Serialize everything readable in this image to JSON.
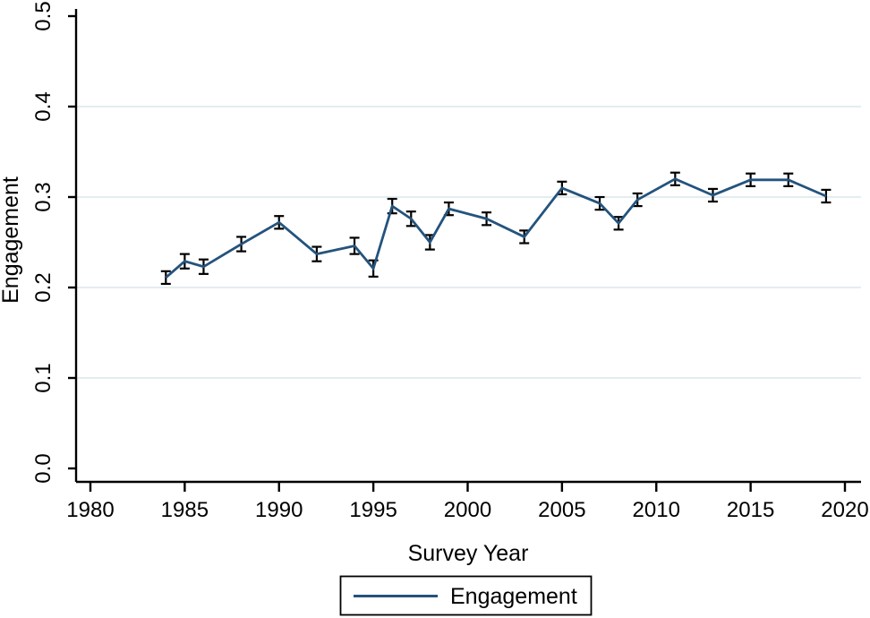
{
  "figure": {
    "background": "#ffffff"
  },
  "chart_data": {
    "type": "line",
    "title": "",
    "xlabel": "Survey Year",
    "ylabel": "Engagement",
    "grid": true,
    "legend": {
      "position": "bottom-center",
      "entries": [
        {
          "label": "Engagement"
        }
      ]
    },
    "xlim": [
      1979.2,
      2020.9
    ],
    "ylim": [
      0.0,
      0.5
    ],
    "x_ticks": [
      1980,
      1985,
      1990,
      1995,
      2000,
      2005,
      2010,
      2015,
      2020
    ],
    "y_ticks": [
      0.0,
      0.1,
      0.2,
      0.3,
      0.4,
      0.5
    ],
    "grid_y_values": [
      0.1,
      0.2,
      0.3,
      0.4
    ],
    "colors": {
      "line": "#24537d",
      "error_bar": "#000000",
      "grid": "#e3edf0",
      "axis": "#000000",
      "text": "#000000",
      "background": "#ffffff"
    },
    "series": [
      {
        "name": "Engagement",
        "marker": "error-bar-capped",
        "points": [
          {
            "year": 1984,
            "value": 0.211,
            "ci_low": 0.204,
            "ci_high": 0.218
          },
          {
            "year": 1985,
            "value": 0.229,
            "ci_low": 0.221,
            "ci_high": 0.237
          },
          {
            "year": 1986,
            "value": 0.223,
            "ci_low": 0.215,
            "ci_high": 0.231
          },
          {
            "year": 1988,
            "value": 0.248,
            "ci_low": 0.24,
            "ci_high": 0.256
          },
          {
            "year": 1990,
            "value": 0.272,
            "ci_low": 0.265,
            "ci_high": 0.279
          },
          {
            "year": 1992,
            "value": 0.237,
            "ci_low": 0.229,
            "ci_high": 0.245
          },
          {
            "year": 1994,
            "value": 0.246,
            "ci_low": 0.237,
            "ci_high": 0.255
          },
          {
            "year": 1995,
            "value": 0.221,
            "ci_low": 0.212,
            "ci_high": 0.23
          },
          {
            "year": 1996,
            "value": 0.29,
            "ci_low": 0.282,
            "ci_high": 0.298
          },
          {
            "year": 1997,
            "value": 0.276,
            "ci_low": 0.268,
            "ci_high": 0.284
          },
          {
            "year": 1998,
            "value": 0.25,
            "ci_low": 0.242,
            "ci_high": 0.258
          },
          {
            "year": 1999,
            "value": 0.287,
            "ci_low": 0.28,
            "ci_high": 0.294
          },
          {
            "year": 2001,
            "value": 0.276,
            "ci_low": 0.269,
            "ci_high": 0.283
          },
          {
            "year": 2003,
            "value": 0.256,
            "ci_low": 0.249,
            "ci_high": 0.263
          },
          {
            "year": 2005,
            "value": 0.31,
            "ci_low": 0.303,
            "ci_high": 0.317
          },
          {
            "year": 2007,
            "value": 0.293,
            "ci_low": 0.286,
            "ci_high": 0.3
          },
          {
            "year": 2008,
            "value": 0.271,
            "ci_low": 0.264,
            "ci_high": 0.278
          },
          {
            "year": 2009,
            "value": 0.297,
            "ci_low": 0.29,
            "ci_high": 0.304
          },
          {
            "year": 2011,
            "value": 0.32,
            "ci_low": 0.313,
            "ci_high": 0.327
          },
          {
            "year": 2013,
            "value": 0.302,
            "ci_low": 0.295,
            "ci_high": 0.309
          },
          {
            "year": 2015,
            "value": 0.319,
            "ci_low": 0.312,
            "ci_high": 0.326
          },
          {
            "year": 2017,
            "value": 0.319,
            "ci_low": 0.312,
            "ci_high": 0.326
          },
          {
            "year": 2019,
            "value": 0.301,
            "ci_low": 0.294,
            "ci_high": 0.308
          }
        ]
      }
    ]
  }
}
